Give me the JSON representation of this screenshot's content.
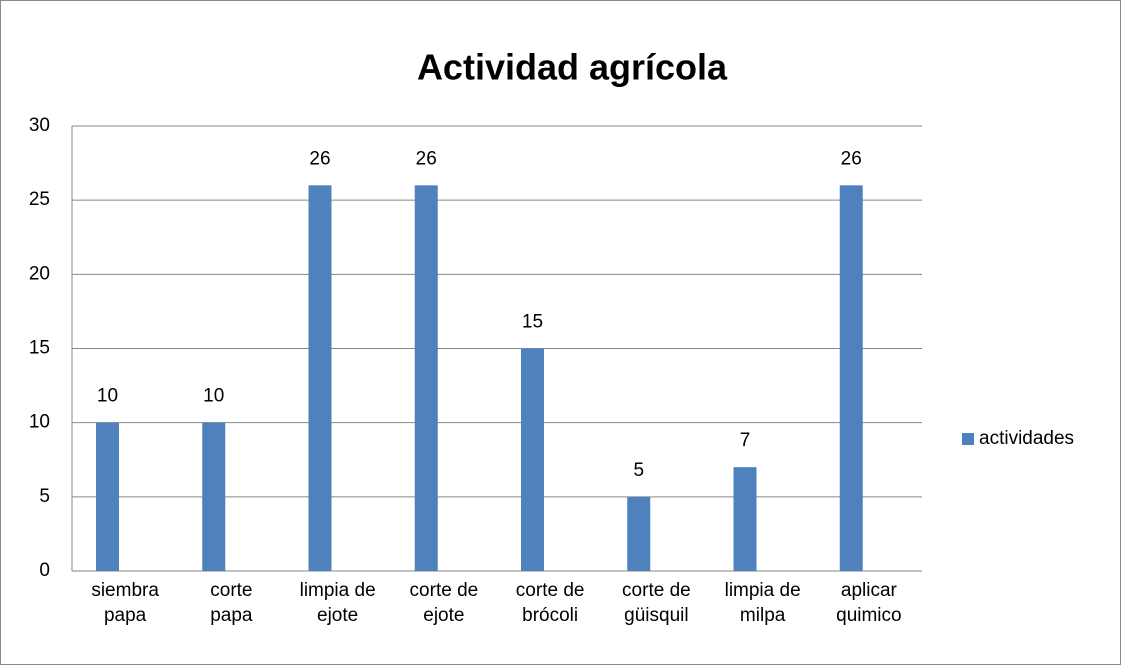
{
  "chart_data": {
    "type": "bar",
    "title": "Actividad agrícola",
    "categories": [
      "siembra papa",
      "corte papa",
      "limpia de ejote",
      "corte de ejote",
      "corte de brócoli",
      "corte de güisquil",
      "limpia de milpa",
      "aplicar quimico"
    ],
    "series": [
      {
        "name": "actividades",
        "color": "#4f81bd",
        "values": [
          10,
          10,
          26,
          26,
          15,
          5,
          7,
          26
        ]
      }
    ],
    "ylim": [
      0,
      30
    ],
    "yticks": [
      0,
      5,
      10,
      15,
      20,
      25,
      30
    ],
    "grid": true,
    "legend": "right"
  }
}
